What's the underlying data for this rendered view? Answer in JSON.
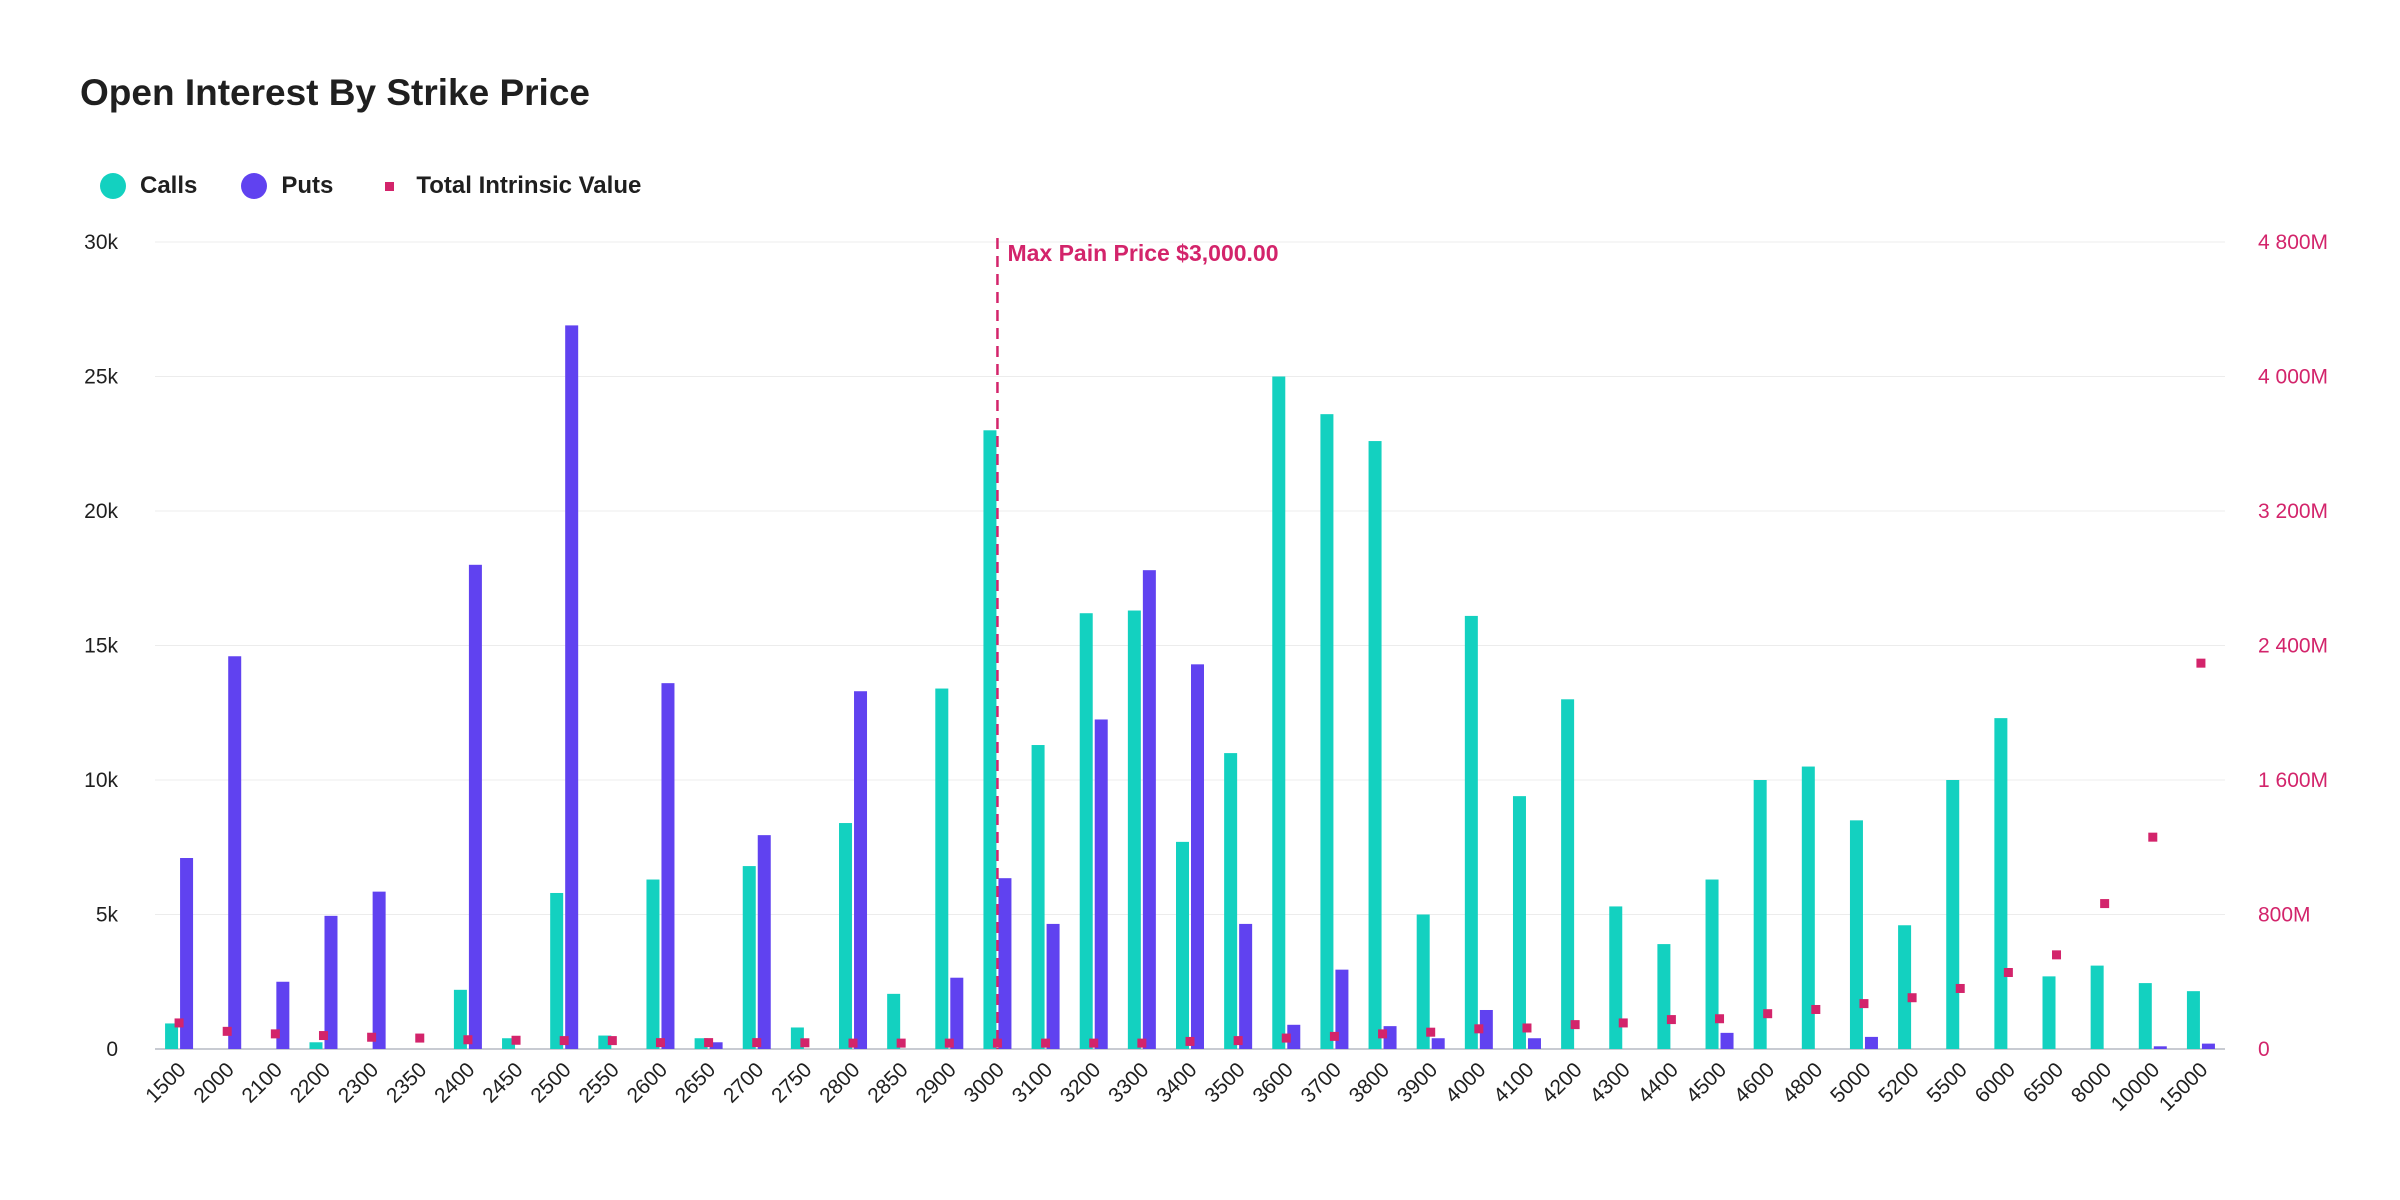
{
  "chart_data": {
    "type": "bar",
    "title": "Open Interest By Strike Price",
    "categories": [
      "1500",
      "2000",
      "2100",
      "2200",
      "2300",
      "2350",
      "2400",
      "2450",
      "2500",
      "2550",
      "2600",
      "2650",
      "2700",
      "2750",
      "2800",
      "2850",
      "2900",
      "3000",
      "3100",
      "3200",
      "3300",
      "3400",
      "3500",
      "3600",
      "3700",
      "3800",
      "3900",
      "4000",
      "4100",
      "4200",
      "4300",
      "4400",
      "4500",
      "4600",
      "4800",
      "5000",
      "5200",
      "5500",
      "6000",
      "6500",
      "8000",
      "10000",
      "15000"
    ],
    "series": [
      {
        "name": "Calls",
        "color": "#13d1c0",
        "values": [
          950,
          0,
          0,
          250,
          0,
          0,
          2200,
          400,
          5800,
          500,
          6300,
          400,
          6800,
          800,
          8400,
          2050,
          13400,
          23000,
          11300,
          16200,
          16300,
          7700,
          11000,
          25000,
          23600,
          22600,
          5000,
          16100,
          9400,
          13000,
          5300,
          3900,
          6300,
          10000,
          10500,
          8500,
          4600,
          10000,
          12300,
          2700,
          3100,
          2450,
          2150
        ]
      },
      {
        "name": "Puts",
        "color": "#6042f0",
        "values": [
          7100,
          14600,
          2500,
          4950,
          5850,
          0,
          18000,
          0,
          26900,
          0,
          13600,
          250,
          7950,
          0,
          13300,
          0,
          2650,
          6350,
          4650,
          12250,
          17800,
          14300,
          4650,
          900,
          2950,
          850,
          400,
          1450,
          400,
          0,
          0,
          0,
          600,
          0,
          0,
          450,
          0,
          0,
          0,
          0,
          0,
          100,
          200
        ]
      },
      {
        "name": "Total Intrinsic Value",
        "color": "#d3246b",
        "type": "scatter",
        "values": [
          155,
          105,
          90,
          80,
          70,
          65,
          55,
          52,
          50,
          50,
          38,
          38,
          38,
          37,
          35,
          35,
          35,
          35,
          35,
          35,
          35,
          45,
          50,
          65,
          75,
          90,
          100,
          120,
          125,
          145,
          155,
          175,
          180,
          210,
          235,
          270,
          305,
          360,
          455,
          560,
          865,
          1260,
          2295
        ]
      }
    ],
    "y_left": {
      "ticks": [
        "0",
        "5k",
        "10k",
        "15k",
        "20k",
        "25k",
        "30k"
      ],
      "ylim": [
        0,
        30000
      ]
    },
    "y_right": {
      "ticks": [
        "0",
        "800M",
        "1 600M",
        "2 400M",
        "3 200M",
        "4 000M",
        "4 800M"
      ],
      "ylim": [
        0,
        4800
      ],
      "unit": "M"
    },
    "annotation": {
      "label": "Max Pain Price $3,000.00",
      "category": "3000",
      "color": "#d3246b"
    },
    "grid": true,
    "legend_position": "top-left"
  }
}
